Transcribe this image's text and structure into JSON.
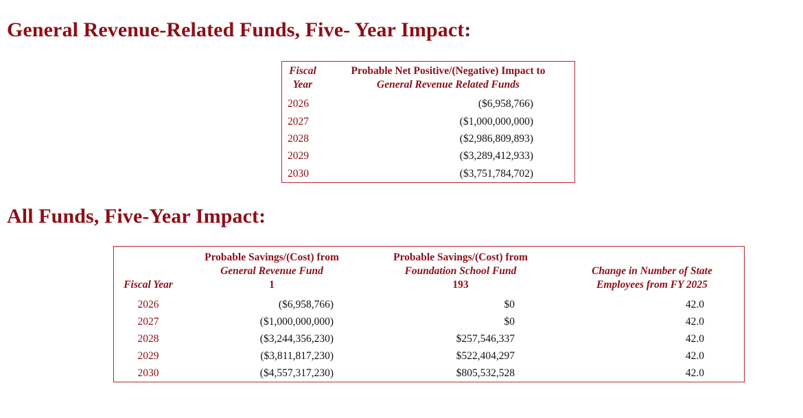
{
  "section1": {
    "title": "General Revenue-Related Funds, Five- Year Impact:",
    "table": {
      "header_fiscal_line1": "Fiscal",
      "header_fiscal_line2": "Year",
      "header_impact_line1": "Probable Net Positive/(Negative) Impact to",
      "header_impact_line2": "General Revenue Related Funds",
      "rows": [
        {
          "year": "2026",
          "impact": "($6,958,766)"
        },
        {
          "year": "2027",
          "impact": "($1,000,000,000)"
        },
        {
          "year": "2028",
          "impact": "($2,986,809,893)"
        },
        {
          "year": "2029",
          "impact": "($3,289,412,933)"
        },
        {
          "year": "2030",
          "impact": "($3,751,784,702)"
        }
      ]
    }
  },
  "section2": {
    "title": "All Funds, Five-Year Impact:",
    "table": {
      "header_fiscal": "Fiscal Year",
      "header_gr_line1": "Probable Savings/(Cost) from",
      "header_gr_line2": "General Revenue Fund",
      "header_gr_line3": "1",
      "header_fsf_line1": "Probable Savings/(Cost) from",
      "header_fsf_line2": "Foundation School Fund",
      "header_fsf_line3": "193",
      "header_emp_line1": "Change in Number of State",
      "header_emp_line2": "Employees from FY 2025",
      "rows": [
        {
          "year": "2026",
          "gr": "($6,958,766)",
          "fsf": "$0",
          "emp": "42.0"
        },
        {
          "year": "2027",
          "gr": "($1,000,000,000)",
          "fsf": "$0",
          "emp": "42.0"
        },
        {
          "year": "2028",
          "gr": "($3,244,356,230)",
          "fsf": "$257,546,337",
          "emp": "42.0"
        },
        {
          "year": "2029",
          "gr": "($3,811,817,230)",
          "fsf": "$522,404,297",
          "emp": "42.0"
        },
        {
          "year": "2030",
          "gr": "($4,557,317,230)",
          "fsf": "$805,532,528",
          "emp": "42.0"
        }
      ]
    }
  }
}
